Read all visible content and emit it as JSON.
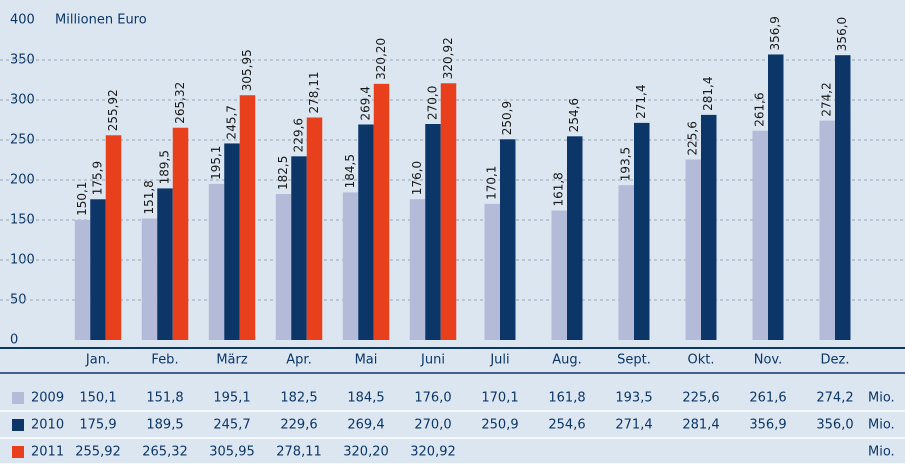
{
  "chart_data": {
    "type": "bar",
    "ylabel": "Millionen Euro",
    "unit": "Mio.",
    "categories": [
      "Jan.",
      "Feb.",
      "März",
      "Apr.",
      "Mai",
      "Juni",
      "Juli",
      "Aug.",
      "Sept.",
      "Okt.",
      "Nov.",
      "Dez."
    ],
    "ylim": [
      0,
      400
    ],
    "yticks": [
      0,
      50,
      100,
      150,
      200,
      250,
      300,
      350,
      400
    ],
    "grid": true,
    "series": [
      {
        "name": "2009",
        "color": "#b3bbd8",
        "values": [
          150.1,
          151.8,
          195.1,
          182.5,
          184.5,
          176.0,
          170.1,
          161.8,
          193.5,
          225.6,
          261.6,
          274.2
        ],
        "value_labels": [
          "150,1",
          "151,8",
          "195,1",
          "182,5",
          "184,5",
          "176,0",
          "170,1",
          "161,8",
          "193,5",
          "225,6",
          "261,6",
          "274,2"
        ]
      },
      {
        "name": "2010",
        "color": "#0c3668",
        "values": [
          175.9,
          189.5,
          245.7,
          229.6,
          269.4,
          270.0,
          250.9,
          254.6,
          271.4,
          281.4,
          356.9,
          356.0
        ],
        "value_labels": [
          "175,9",
          "189,5",
          "245,7",
          "229,6",
          "269,4",
          "270,0",
          "250,9",
          "254,6",
          "271,4",
          "281,4",
          "356,9",
          "356,0"
        ]
      },
      {
        "name": "2011",
        "color": "#e8401c",
        "values": [
          255.92,
          265.32,
          305.95,
          278.11,
          320.2,
          320.92,
          null,
          null,
          null,
          null,
          null,
          null
        ],
        "value_labels": [
          "255,92",
          "265,32",
          "305,95",
          "278,11",
          "320,20",
          "320,92",
          null,
          null,
          null,
          null,
          null,
          null
        ]
      }
    ]
  }
}
